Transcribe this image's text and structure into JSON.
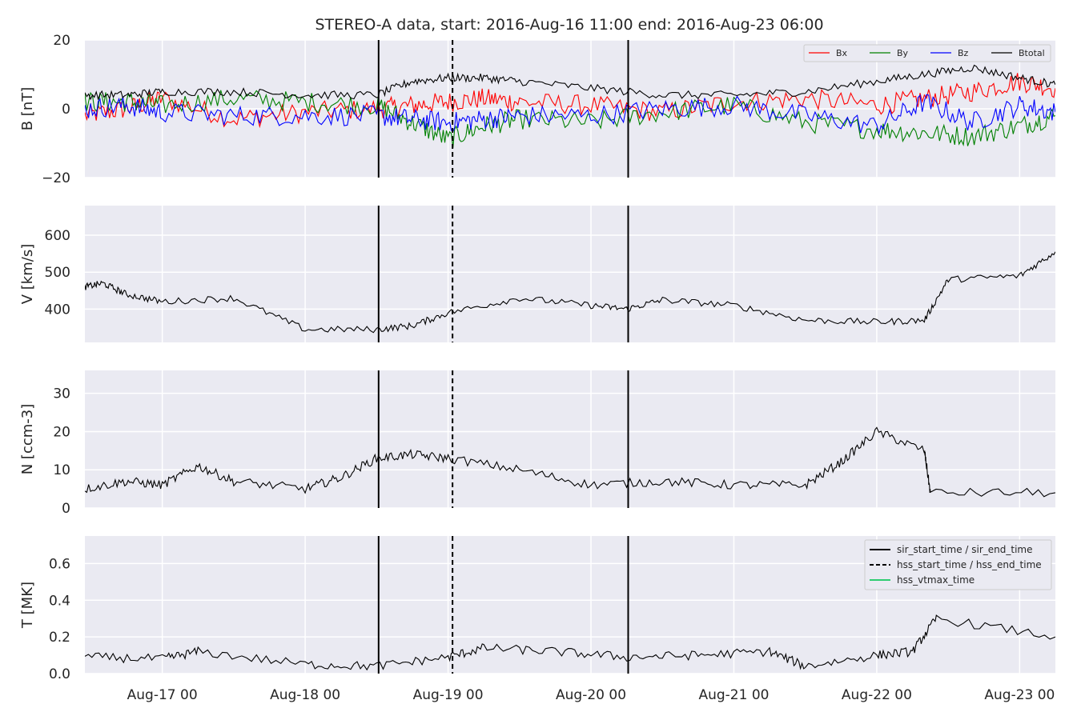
{
  "figure": {
    "title": "STEREO-A data, start: 2016-Aug-16 11:00  end: 2016-Aug-23 06:00"
  },
  "x_axis": {
    "start": "2016-08-16T11:00",
    "end": "2016-08-23T06:00",
    "tick_values": [
      "2016-08-17T00:00",
      "2016-08-18T00:00",
      "2016-08-19T00:00",
      "2016-08-20T00:00",
      "2016-08-21T00:00",
      "2016-08-22T00:00",
      "2016-08-23T00:00"
    ],
    "tick_labels": [
      "Aug-17 00",
      "Aug-18 00",
      "Aug-19 00",
      "Aug-20 00",
      "Aug-21 00",
      "Aug-22 00",
      "Aug-23 00"
    ]
  },
  "event_lines": [
    {
      "time": "2016-08-18T12:20",
      "style": "solid"
    },
    {
      "time": "2016-08-19T00:45",
      "style": "dashed"
    },
    {
      "time": "2016-08-20T06:15",
      "style": "solid"
    }
  ],
  "legend_events": [
    {
      "label": "sir_start_time / sir_end_time",
      "style": "solid",
      "color": "#000000"
    },
    {
      "label": "hss_start_time / hss_end_time",
      "style": "dashed",
      "color": "#000000"
    },
    {
      "label": "hss_vtmax_time",
      "style": "solid",
      "color": "#2ecc71"
    }
  ],
  "chart_data": [
    {
      "type": "line",
      "ylabel": "B [nT]",
      "ylim": [
        -20,
        20
      ],
      "yticks": [
        -20,
        0,
        20
      ],
      "ytick_labels": [
        "−20",
        "0",
        "20"
      ],
      "grid": true,
      "legend": "top-right",
      "x": [
        "2016-08-16T11:00",
        "2016-08-16T18:00",
        "2016-08-17T00:00",
        "2016-08-17T12:00",
        "2016-08-18T00:00",
        "2016-08-18T12:00",
        "2016-08-18T18:00",
        "2016-08-19T00:00",
        "2016-08-19T06:00",
        "2016-08-19T12:00",
        "2016-08-20T00:00",
        "2016-08-20T12:00",
        "2016-08-21T00:00",
        "2016-08-21T12:00",
        "2016-08-22T00:00",
        "2016-08-22T08:00",
        "2016-08-22T16:00",
        "2016-08-23T00:00",
        "2016-08-23T06:00"
      ],
      "series": [
        {
          "name": "Bx",
          "color": "#ff0000",
          "values": [
            -2,
            0,
            3,
            -3,
            -1,
            0,
            1,
            2,
            3,
            2,
            1,
            -1,
            2,
            3,
            1,
            3,
            5,
            8,
            6
          ]
        },
        {
          "name": "By",
          "color": "#008000",
          "values": [
            2,
            2,
            1,
            3,
            2,
            1,
            -4,
            -9,
            -5,
            -3,
            -4,
            -1,
            1,
            -4,
            -6,
            -7,
            -8,
            -5,
            -2
          ]
        },
        {
          "name": "Bz",
          "color": "#0000ff",
          "values": [
            0,
            1,
            -1,
            -2,
            -2,
            -2,
            -3,
            -4,
            -3,
            -2,
            -2,
            0,
            1,
            -2,
            -5,
            2,
            -4,
            1,
            -1
          ]
        },
        {
          "name": "Btotal",
          "color": "#000000",
          "values": [
            4,
            4,
            5,
            5,
            4,
            4,
            8,
            9,
            9,
            8,
            6,
            4,
            4,
            5,
            8,
            10,
            12,
            9,
            7
          ]
        }
      ]
    },
    {
      "type": "line",
      "ylabel": "V [km/s]",
      "ylim": [
        310,
        680
      ],
      "yticks": [
        400,
        500,
        600
      ],
      "ytick_labels": [
        "400",
        "500",
        "600"
      ],
      "grid": true,
      "x": [
        "2016-08-16T11:00",
        "2016-08-16T14:00",
        "2016-08-16T18:00",
        "2016-08-17T00:00",
        "2016-08-17T12:00",
        "2016-08-18T00:00",
        "2016-08-18T12:00",
        "2016-08-18T18:00",
        "2016-08-19T00:00",
        "2016-08-19T12:00",
        "2016-08-20T00:00",
        "2016-08-20T06:00",
        "2016-08-20T12:00",
        "2016-08-21T00:00",
        "2016-08-21T12:00",
        "2016-08-22T00:00",
        "2016-08-22T08:00",
        "2016-08-22T12:00",
        "2016-08-23T00:00",
        "2016-08-23T06:00"
      ],
      "series": [
        {
          "values": [
            460,
            470,
            440,
            420,
            430,
            345,
            345,
            355,
            390,
            430,
            410,
            400,
            425,
            410,
            370,
            365,
            370,
            480,
            490,
            555
          ]
        }
      ]
    },
    {
      "type": "line",
      "ylabel": "N [ccm-3]",
      "ylim": [
        0,
        36
      ],
      "yticks": [
        0,
        10,
        20,
        30
      ],
      "ytick_labels": [
        "0",
        "10",
        "20",
        "30"
      ],
      "grid": true,
      "x": [
        "2016-08-16T11:00",
        "2016-08-16T18:00",
        "2016-08-17T00:00",
        "2016-08-17T06:00",
        "2016-08-17T12:00",
        "2016-08-18T00:00",
        "2016-08-18T06:00",
        "2016-08-18T12:00",
        "2016-08-18T18:00",
        "2016-08-19T00:00",
        "2016-08-19T12:00",
        "2016-08-20T00:00",
        "2016-08-20T12:00",
        "2016-08-21T00:00",
        "2016-08-21T12:00",
        "2016-08-21T18:00",
        "2016-08-22T00:00",
        "2016-08-22T08:00",
        "2016-08-22T09:00",
        "2016-08-23T06:00"
      ],
      "series": [
        {
          "values": [
            5,
            7,
            6,
            11,
            7,
            5,
            8,
            13,
            14,
            13,
            10,
            6,
            7,
            6,
            6,
            12,
            20,
            15,
            4,
            4
          ]
        }
      ]
    },
    {
      "type": "line",
      "ylabel": "T [MK]",
      "ylim": [
        0,
        0.75
      ],
      "yticks": [
        0.0,
        0.2,
        0.4,
        0.6
      ],
      "ytick_labels": [
        "0.0",
        "0.2",
        "0.4",
        "0.6"
      ],
      "grid": true,
      "legend": "top-right",
      "x": [
        "2016-08-16T11:00",
        "2016-08-17T00:00",
        "2016-08-17T06:00",
        "2016-08-18T00:00",
        "2016-08-18T12:00",
        "2016-08-19T00:00",
        "2016-08-19T06:00",
        "2016-08-19T18:00",
        "2016-08-20T06:00",
        "2016-08-20T18:00",
        "2016-08-21T06:00",
        "2016-08-21T12:00",
        "2016-08-22T00:00",
        "2016-08-22T06:00",
        "2016-08-22T10:00",
        "2016-08-23T06:00"
      ],
      "series": [
        {
          "values": [
            0.09,
            0.08,
            0.12,
            0.05,
            0.04,
            0.09,
            0.14,
            0.12,
            0.09,
            0.1,
            0.12,
            0.04,
            0.1,
            0.12,
            0.3,
            0.2
          ]
        }
      ]
    }
  ]
}
